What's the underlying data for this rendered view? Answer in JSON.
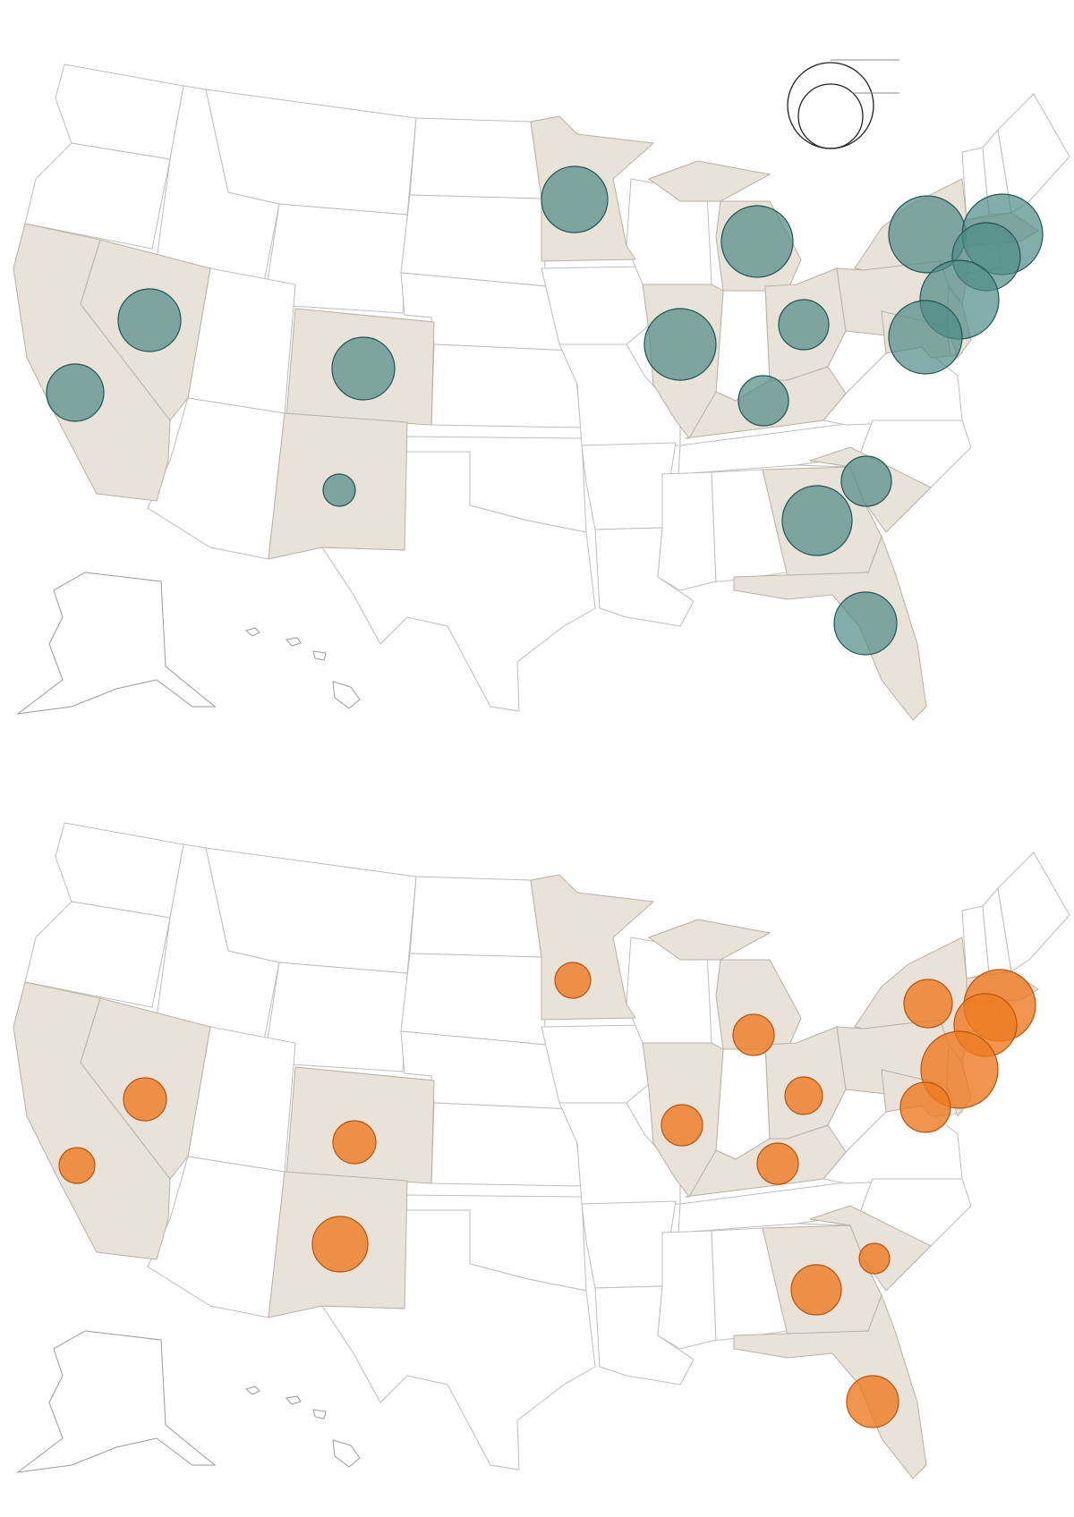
{
  "legend": {
    "large_label": "",
    "small_label": ""
  },
  "colors": {
    "highlight_state_fill": "#e9e2d9",
    "top_bubble": "#4e8a85",
    "bottom_bubble": "#ee7a22"
  },
  "highlighted_states": [
    "CA",
    "NV",
    "CO",
    "NM",
    "MN",
    "IL",
    "MI",
    "OH",
    "KY",
    "NY",
    "PA",
    "GA",
    "SC",
    "FL",
    "MA",
    "NJ",
    "MD"
  ],
  "top_map": {
    "bubble_color": "#4e8a85",
    "bubbles": [
      {
        "state": "CA",
        "size": 32
      },
      {
        "state": "NV",
        "size": 35
      },
      {
        "state": "CO",
        "size": 35
      },
      {
        "state": "NM",
        "size": 18
      },
      {
        "state": "MN",
        "size": 37
      },
      {
        "state": "IL",
        "size": 40
      },
      {
        "state": "MI",
        "size": 40
      },
      {
        "state": "OH",
        "size": 28
      },
      {
        "state": "KY",
        "size": 28
      },
      {
        "state": "GA",
        "size": 39
      },
      {
        "state": "SC",
        "size": 28
      },
      {
        "state": "FL",
        "size": 35
      },
      {
        "state": "NY",
        "size": 43
      },
      {
        "state": "MA",
        "size": 45
      },
      {
        "state": "NH",
        "size": 38
      },
      {
        "state": "NJ",
        "size": 44
      },
      {
        "state": "MD",
        "size": 41
      }
    ]
  },
  "bottom_map": {
    "bubble_color": "#ee7a22",
    "bubbles": [
      {
        "state": "CA",
        "size": 20
      },
      {
        "state": "NV",
        "size": 24
      },
      {
        "state": "CO",
        "size": 24
      },
      {
        "state": "NM",
        "size": 31
      },
      {
        "state": "MN",
        "size": 20
      },
      {
        "state": "IL",
        "size": 23
      },
      {
        "state": "MI",
        "size": 23
      },
      {
        "state": "OH",
        "size": 21
      },
      {
        "state": "KY",
        "size": 23
      },
      {
        "state": "GA",
        "size": 28
      },
      {
        "state": "SC",
        "size": 17
      },
      {
        "state": "FL",
        "size": 29
      },
      {
        "state": "NY",
        "size": 27
      },
      {
        "state": "MA",
        "size": 40
      },
      {
        "state": "CT",
        "size": 35
      },
      {
        "state": "NJ",
        "size": 43
      },
      {
        "state": "MD",
        "size": 28
      }
    ]
  }
}
